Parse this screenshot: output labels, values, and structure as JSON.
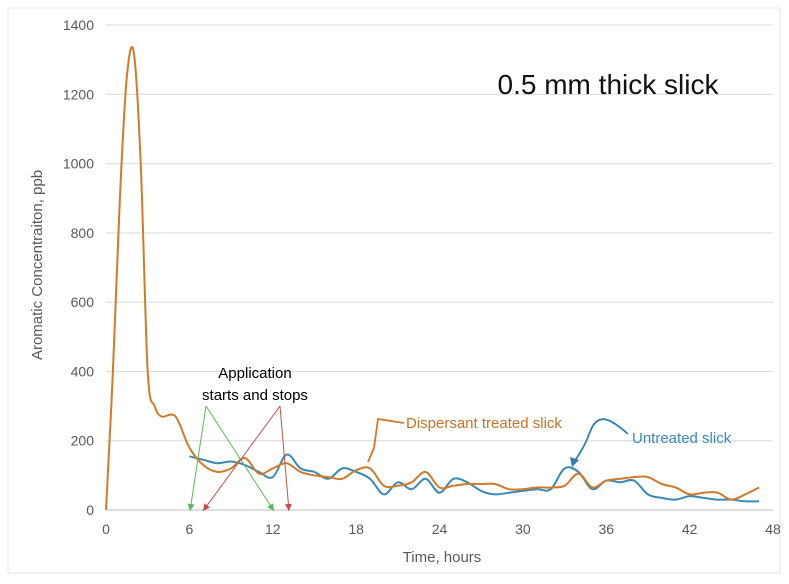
{
  "chart_data": {
    "type": "line",
    "title": "0.5 mm thick slick",
    "xlabel": "Time, hours",
    "ylabel": "Aromatic Concentraiton, ppb",
    "xlim": [
      0,
      48
    ],
    "ylim": [
      0,
      1400
    ],
    "x_ticks": [
      0,
      6,
      12,
      18,
      24,
      30,
      36,
      42,
      48
    ],
    "y_ticks": [
      0,
      200,
      400,
      600,
      800,
      1000,
      1200,
      1400
    ],
    "grid": "horizontal",
    "series": [
      {
        "name": "Dispersant treated slick",
        "color": "#d07a2a",
        "x": [
          0,
          0.5,
          1,
          1.5,
          2,
          2.5,
          3,
          3.5,
          4,
          5,
          6,
          7,
          8,
          9,
          10,
          11,
          12,
          13,
          14,
          15,
          16,
          17,
          18,
          19,
          20,
          21,
          22,
          23,
          24,
          25,
          26,
          27,
          28,
          29,
          30,
          31,
          32,
          33,
          34,
          35,
          36,
          37,
          38,
          39,
          40,
          41,
          42,
          43,
          44,
          45,
          46,
          47
        ],
        "y": [
          0,
          400,
          900,
          1250,
          1320,
          1000,
          400,
          300,
          270,
          270,
          180,
          130,
          110,
          120,
          150,
          105,
          120,
          135,
          110,
          100,
          95,
          90,
          115,
          120,
          70,
          70,
          80,
          110,
          65,
          70,
          75,
          75,
          75,
          60,
          60,
          65,
          65,
          70,
          105,
          65,
          85,
          90,
          95,
          95,
          75,
          65,
          45,
          50,
          50,
          30,
          45,
          65
        ]
      },
      {
        "name": "Untreated slick",
        "color": "#3a8ab8",
        "x": [
          6,
          7,
          8,
          9,
          10,
          11,
          12,
          13,
          14,
          15,
          16,
          17,
          18,
          19,
          20,
          21,
          22,
          23,
          24,
          25,
          26,
          27,
          28,
          29,
          30,
          31,
          32,
          33,
          34,
          35,
          36,
          37,
          38,
          39,
          40,
          41,
          42,
          43,
          44,
          45,
          46,
          47
        ],
        "y": [
          155,
          145,
          135,
          140,
          130,
          110,
          95,
          160,
          120,
          110,
          90,
          120,
          110,
          90,
          45,
          80,
          60,
          90,
          50,
          90,
          80,
          55,
          45,
          50,
          55,
          60,
          60,
          120,
          110,
          60,
          85,
          80,
          85,
          45,
          35,
          30,
          40,
          35,
          30,
          30,
          25,
          25
        ]
      }
    ],
    "annotations": {
      "application": {
        "line1": "Application",
        "line2": "starts and stops"
      },
      "dispersant_label": "Dispersant treated slick",
      "untreated_label": "Untreated slick"
    }
  }
}
